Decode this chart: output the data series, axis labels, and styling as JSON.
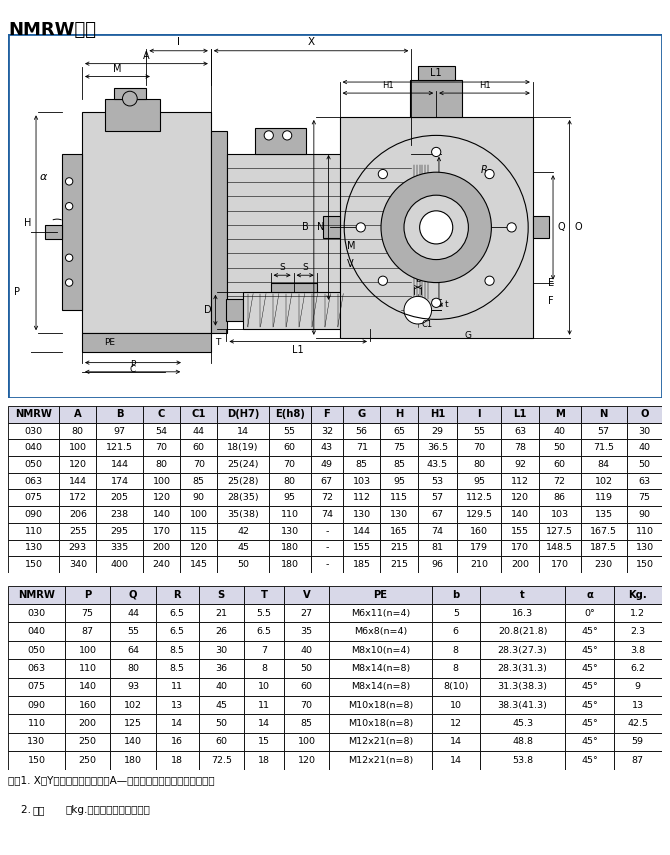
{
  "title": "NMRW尺寸",
  "border_color": "#2060A0",
  "table1_headers": [
    "NMRW",
    "A",
    "B",
    "C",
    "C1",
    "D(H7)",
    "E(h8)",
    "F",
    "G",
    "H",
    "H1",
    "I",
    "L1",
    "M",
    "N",
    "O"
  ],
  "table1_col_weights": [
    1.1,
    0.8,
    1.0,
    0.8,
    0.8,
    1.1,
    0.9,
    0.7,
    0.8,
    0.8,
    0.85,
    0.95,
    0.8,
    0.9,
    1.0,
    0.75
  ],
  "table1_data": [
    [
      "030",
      "80",
      "97",
      "54",
      "44",
      "14",
      "55",
      "32",
      "56",
      "65",
      "29",
      "55",
      "63",
      "40",
      "57",
      "30"
    ],
    [
      "040",
      "100",
      "121.5",
      "70",
      "60",
      "18(19)",
      "60",
      "43",
      "71",
      "75",
      "36.5",
      "70",
      "78",
      "50",
      "71.5",
      "40"
    ],
    [
      "050",
      "120",
      "144",
      "80",
      "70",
      "25(24)",
      "70",
      "49",
      "85",
      "85",
      "43.5",
      "80",
      "92",
      "60",
      "84",
      "50"
    ],
    [
      "063",
      "144",
      "174",
      "100",
      "85",
      "25(28)",
      "80",
      "67",
      "103",
      "95",
      "53",
      "95",
      "112",
      "72",
      "102",
      "63"
    ],
    [
      "075",
      "172",
      "205",
      "120",
      "90",
      "28(35)",
      "95",
      "72",
      "112",
      "115",
      "57",
      "112.5",
      "120",
      "86",
      "119",
      "75"
    ],
    [
      "090",
      "206",
      "238",
      "140",
      "100",
      "35(38)",
      "110",
      "74",
      "130",
      "130",
      "67",
      "129.5",
      "140",
      "103",
      "135",
      "90"
    ],
    [
      "110",
      "255",
      "295",
      "170",
      "115",
      "42",
      "130",
      "-",
      "144",
      "165",
      "74",
      "160",
      "155",
      "127.5",
      "167.5",
      "110"
    ],
    [
      "130",
      "293",
      "335",
      "200",
      "120",
      "45",
      "180",
      "-",
      "155",
      "215",
      "81",
      "179",
      "170",
      "148.5",
      "187.5",
      "130"
    ],
    [
      "150",
      "340",
      "400",
      "240",
      "145",
      "50",
      "180",
      "-",
      "185",
      "215",
      "96",
      "210",
      "200",
      "170",
      "230",
      "150"
    ]
  ],
  "table2_headers": [
    "NMRW",
    "P",
    "Q",
    "R",
    "S",
    "T",
    "V",
    "PE",
    "b",
    "t",
    "α",
    "Kg."
  ],
  "table2_col_weights": [
    1.0,
    0.8,
    0.8,
    0.75,
    0.8,
    0.7,
    0.8,
    1.8,
    0.85,
    1.5,
    0.85,
    0.85
  ],
  "table2_data": [
    [
      "030",
      "75",
      "44",
      "6.5",
      "21",
      "5.5",
      "27",
      "M6x11(n=4)",
      "5",
      "16.3",
      "0°",
      "1.2"
    ],
    [
      "040",
      "87",
      "55",
      "6.5",
      "26",
      "6.5",
      "35",
      "M6x8(n=4)",
      "6",
      "20.8(21.8)",
      "45°",
      "2.3"
    ],
    [
      "050",
      "100",
      "64",
      "8.5",
      "30",
      "7",
      "40",
      "M8x10(n=4)",
      "8",
      "28.3(27.3)",
      "45°",
      "3.8"
    ],
    [
      "063",
      "110",
      "80",
      "8.5",
      "36",
      "8",
      "50",
      "M8x14(n=8)",
      "8",
      "28.3(31.3)",
      "45°",
      "6.2"
    ],
    [
      "075",
      "140",
      "93",
      "11",
      "40",
      "10",
      "60",
      "M8x14(n=8)",
      "8(10)",
      "31.3(38.3)",
      "45°",
      "9"
    ],
    [
      "090",
      "160",
      "102",
      "13",
      "45",
      "11",
      "70",
      "M10x18(n=8)",
      "10",
      "38.3(41.3)",
      "45°",
      "13"
    ],
    [
      "110",
      "200",
      "125",
      "14",
      "50",
      "14",
      "85",
      "M10x18(n=8)",
      "12",
      "45.3",
      "45°",
      "42.5"
    ],
    [
      "130",
      "250",
      "140",
      "16",
      "60",
      "15",
      "100",
      "M12x21(n=8)",
      "14",
      "48.8",
      "45°",
      "59"
    ],
    [
      "150",
      "250",
      "180",
      "18",
      "72.5",
      "18",
      "120",
      "M12x21(n=8)",
      "14",
      "53.8",
      "45°",
      "87"
    ]
  ],
  "note1": "注：1. X、Y尺寸参见本公司样本A—《通用电机》篇中的尺寸部分；",
  "note2": "    2. 重量（kg.）不包含电机的重量。",
  "note2_bold": "重量",
  "header_bg": "#D8D8E8",
  "table_lw": 0.6
}
